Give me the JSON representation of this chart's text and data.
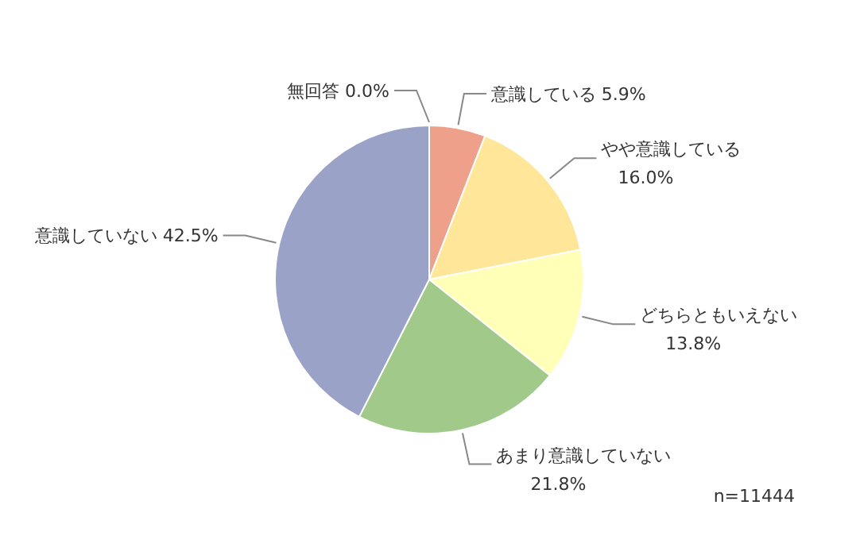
{
  "chart_data": {
    "type": "pie",
    "categories": [
      "意識している",
      "やや意識している",
      "どちらともいえない",
      "あまり意識していない",
      "意識していない",
      "無回答"
    ],
    "values": [
      5.9,
      16.0,
      13.8,
      21.8,
      42.5,
      0.0
    ],
    "value_labels": [
      "5.9%",
      "16.0%",
      "13.8%",
      "21.8%",
      "42.5%",
      "0.0%"
    ],
    "colors": [
      "#eea08a",
      "#ffe699",
      "#ffffb7",
      "#a0c98a",
      "#9ba2c8",
      "#d0d0d0"
    ],
    "annotations": [
      "n=11444"
    ]
  }
}
